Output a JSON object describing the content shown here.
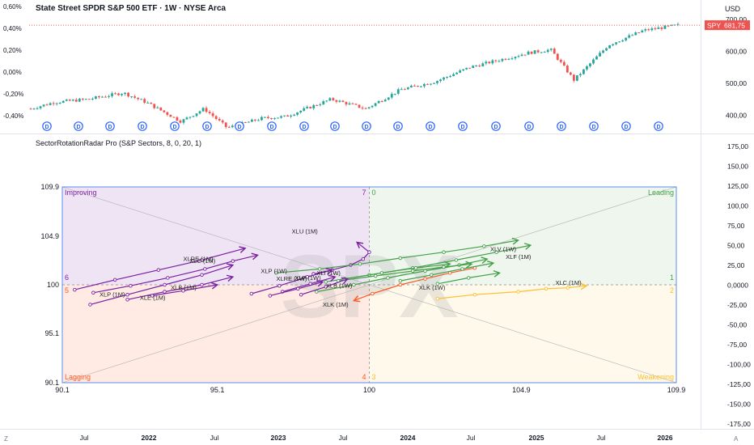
{
  "header": {
    "symbol_title": "State Street SPDR S&P 500 ETF · 1W · NYSE Arca",
    "currency": "USD",
    "price_tag_symbol": "SPY",
    "price_tag_value": "681,75"
  },
  "indicator": {
    "title": "SectorRotationRadar Pro (S&P Sectors, 8, 0, 20, 1)",
    "watermark": "SPX"
  },
  "colors": {
    "up": "#26a69a",
    "down": "#ef5350",
    "improving": "#7b1fa2",
    "leading": "#43a047",
    "lagging": "#ff5722",
    "weakening": "#fbc02d",
    "dividend": "#2962ff",
    "axis_text": "#131722"
  },
  "chart_data": [
    {
      "type": "candlestick",
      "title": "State Street SPDR S&P 500 ETF · 1W · NYSE Arca",
      "right_axis_ticks": [
        "700,00",
        "600,00",
        "500,00",
        "400,00"
      ],
      "left_axis_ticks": [
        "0,60%",
        "0,40%",
        "0,20%",
        "0,00%",
        "-0,20%",
        "-0,40%"
      ],
      "ylim": [
        355,
        710
      ],
      "last_price": 681.75,
      "close_approx": [
        {
          "date": "2021-05",
          "close": 420
        },
        {
          "date": "2021-07",
          "close": 440
        },
        {
          "date": "2021-10",
          "close": 450
        },
        {
          "date": "2022-01",
          "close": 470
        },
        {
          "date": "2022-03",
          "close": 440
        },
        {
          "date": "2022-06",
          "close": 380
        },
        {
          "date": "2022-08",
          "close": 420
        },
        {
          "date": "2022-10",
          "close": 360
        },
        {
          "date": "2023-01",
          "close": 390
        },
        {
          "date": "2023-03",
          "close": 395
        },
        {
          "date": "2023-07",
          "close": 450
        },
        {
          "date": "2023-10",
          "close": 420
        },
        {
          "date": "2024-01",
          "close": 480
        },
        {
          "date": "2024-04",
          "close": 505
        },
        {
          "date": "2024-07",
          "close": 550
        },
        {
          "date": "2024-12",
          "close": 595
        },
        {
          "date": "2025-02",
          "close": 605
        },
        {
          "date": "2025-04",
          "close": 510
        },
        {
          "date": "2025-07",
          "close": 620
        },
        {
          "date": "2025-10",
          "close": 665
        },
        {
          "date": "2026-01",
          "close": 682
        }
      ],
      "dividend_markers": [
        "D",
        "D",
        "D",
        "D",
        "D",
        "D",
        "D",
        "D",
        "D",
        "D",
        "D",
        "D",
        "D",
        "D",
        "D",
        "D",
        "D",
        "D",
        "D",
        "D"
      ]
    },
    {
      "type": "scatter",
      "title": "SectorRotationRadar Pro (S&P Sectors, 8, 0, 20, 1)",
      "xlim": [
        90.1,
        109.9
      ],
      "ylim": [
        90.1,
        109.9
      ],
      "x_ticks": [
        "90.1",
        "95.1",
        "100",
        "104.9",
        "109.9"
      ],
      "y_ticks": [
        "109.9",
        "104.9",
        "100",
        "95.1",
        "90.1"
      ],
      "quadrants": [
        {
          "name": "Improving",
          "number": "7",
          "color": "#7b1fa2"
        },
        {
          "name": "Leading",
          "number": "0",
          "color": "#43a047"
        },
        {
          "name": "Lagging",
          "number": "4",
          "color": "#ff5722"
        },
        {
          "name": "Weakening",
          "number": "3",
          "color": "#fbc02d"
        }
      ],
      "edge_numbers": {
        "left_top": "6",
        "left_mid": "5",
        "right_top": "1",
        "right_mid": "2"
      },
      "right_axis_ticks": [
        "175,00",
        "150,00",
        "125,00",
        "100,00",
        "75,00",
        "50,00",
        "25,00",
        "0,0000",
        "-25,00",
        "-50,00",
        "-75,00",
        "-100,00",
        "-125,00",
        "-150,00",
        "-175,00"
      ],
      "series": [
        {
          "name": "XLU (1M)",
          "color": "#7b1fa2",
          "points": [
            [
              98.2,
              101.1
            ],
            [
              98.8,
              101.5
            ],
            [
              99.4,
              102.0
            ],
            [
              99.8,
              102.6
            ],
            [
              100.0,
              103.3
            ],
            [
              99.6,
              104.3
            ]
          ]
        },
        {
          "name": "XLP (1M)",
          "color": "#7b1fa2",
          "points": [
            [
              91.1,
              99.2
            ],
            [
              92.3,
              99.9
            ],
            [
              93.5,
              100.7
            ],
            [
              94.7,
              101.6
            ],
            [
              95.6,
              102.4
            ],
            [
              96.4,
              103.0
            ]
          ]
        },
        {
          "name": "XLRE (1M)",
          "color": "#7b1fa2",
          "points": [
            [
              91.0,
              98.0
            ],
            [
              92.2,
              99.0
            ],
            [
              93.4,
              100.0
            ],
            [
              94.6,
              101.0
            ],
            [
              95.6,
              102.0
            ]
          ]
        },
        {
          "name": "XLF (1M)",
          "color": "#7b1fa2",
          "points": [
            [
              92.2,
              98.5
            ],
            [
              93.4,
              99.3
            ],
            [
              94.6,
              100.0
            ],
            [
              95.6,
              100.8
            ]
          ]
        },
        {
          "name": "XLE (1M)",
          "color": "#7b1fa2",
          "points": [
            [
              93.0,
              98.9
            ],
            [
              94.0,
              99.4
            ],
            [
              95.1,
              100.0
            ]
          ]
        },
        {
          "name": "XLB (1M)",
          "color": "#7b1fa2",
          "points": [
            [
              90.5,
              99.5
            ],
            [
              91.8,
              100.5
            ],
            [
              93.2,
              101.5
            ],
            [
              94.6,
              102.5
            ],
            [
              96.0,
              103.7
            ]
          ]
        },
        {
          "name": "XLP (1W)",
          "color": "#43a047",
          "points": [
            [
              97.0,
              101.2
            ],
            [
              98.4,
              101.6
            ],
            [
              99.7,
              102.1
            ],
            [
              101.0,
              102.7
            ],
            [
              102.4,
              103.3
            ],
            [
              103.7,
              103.9
            ],
            [
              104.8,
              104.5
            ]
          ]
        },
        {
          "name": "XLV (1W)",
          "color": "#43a047",
          "points": [
            [
              98.6,
              100.3
            ],
            [
              100.0,
              101.0
            ],
            [
              101.4,
              101.7
            ],
            [
              102.8,
              102.5
            ],
            [
              104.1,
              103.3
            ],
            [
              105.2,
              104.0
            ]
          ]
        },
        {
          "name": "XLF (1W)",
          "color": "#43a047",
          "points": [
            [
              98.3,
              99.3
            ],
            [
              99.5,
              100.0
            ],
            [
              100.6,
              100.7
            ],
            [
              101.8,
              101.4
            ],
            [
              102.9,
              102.0
            ],
            [
              103.8,
              102.6
            ]
          ]
        },
        {
          "name": "XLI (1W)",
          "color": "#43a047",
          "points": [
            [
              99.0,
              100.4
            ],
            [
              100.2,
              100.9
            ],
            [
              101.4,
              101.4
            ],
            [
              102.4,
              101.8
            ],
            [
              103.3,
              102.1
            ]
          ]
        },
        {
          "name": "XLY (1W)",
          "color": "#43a047",
          "points": [
            [
              99.2,
              100.6
            ],
            [
              100.4,
              101.2
            ],
            [
              101.5,
              101.7
            ],
            [
              102.6,
              102.1
            ]
          ]
        },
        {
          "name": "XLRE (1W)",
          "color": "#7b1fa2",
          "points": [
            [
              96.2,
              99.1
            ],
            [
              97.1,
              99.9
            ],
            [
              98.0,
              100.8
            ],
            [
              98.8,
              101.5
            ]
          ]
        },
        {
          "name": "XLB (1W)",
          "color": "#7b1fa2",
          "points": [
            [
              97.8,
              99.0
            ],
            [
              98.6,
              99.8
            ],
            [
              99.3,
              100.6
            ]
          ]
        },
        {
          "name": "XLC (1W)",
          "color": "#7b1fa2",
          "points": [
            [
              97.2,
              99.3
            ],
            [
              98.1,
              100.1
            ],
            [
              98.9,
              100.8
            ]
          ]
        },
        {
          "name": "XLE (1W)",
          "color": "#7b1fa2",
          "points": [
            [
              96.8,
              98.9
            ],
            [
              97.7,
              99.6
            ],
            [
              98.5,
              100.3
            ]
          ]
        },
        {
          "name": "XLK (1W)",
          "color": "#ff5722",
          "points": [
            [
              103.4,
              101.7
            ],
            [
              102.6,
              101.2
            ],
            [
              101.8,
              100.6
            ],
            [
              101.0,
              100.0
            ],
            [
              100.1,
              99.1
            ],
            [
              99.5,
              98.4
            ]
          ]
        },
        {
          "name": "XLK (1M)",
          "color": "#fbc02d",
          "points": [
            [
              102.2,
              98.6
            ],
            [
              103.4,
              99.0
            ],
            [
              104.8,
              99.3
            ],
            [
              105.7,
              99.6
            ],
            [
              106.4,
              99.7
            ],
            [
              107.0,
              99.9
            ]
          ]
        },
        {
          "name": "XLY (1M)",
          "color": "#43a047",
          "points": [
            [
              101.0,
              100.4
            ],
            [
              102.0,
              101.0
            ],
            [
              103.0,
              101.6
            ],
            [
              104.0,
              102.2
            ]
          ]
        },
        {
          "name": "XLC (1M)",
          "color": "#43a047",
          "points": [
            [
              102.2,
              100.1
            ],
            [
              103.2,
              100.7
            ],
            [
              104.2,
              101.2
            ]
          ]
        }
      ],
      "labels": [
        {
          "text": "XLU (1M)",
          "x": 97.5,
          "y": 105.2
        },
        {
          "text": "XLRE (1M)",
          "x": 94.0,
          "y": 102.4
        },
        {
          "text": "XLC (1M)",
          "x": 94.2,
          "y": 102.2
        },
        {
          "text": "XLP (1W)",
          "x": 96.5,
          "y": 101.2
        },
        {
          "text": "XLRE (1W)",
          "x": 97.0,
          "y": 100.4
        },
        {
          "text": "XLF (1W)",
          "x": 97.6,
          "y": 100.5
        },
        {
          "text": "XLI (1W)",
          "x": 98.3,
          "y": 101.0
        },
        {
          "text": "XLV (1W)",
          "x": 103.9,
          "y": 103.4
        },
        {
          "text": "XLF (1M)",
          "x": 104.4,
          "y": 102.6
        },
        {
          "text": "XLC (1M)",
          "x": 106.0,
          "y": 100.0
        },
        {
          "text": "XLB (1M)",
          "x": 93.6,
          "y": 99.5
        },
        {
          "text": "XLP (1M)",
          "x": 91.3,
          "y": 98.8
        },
        {
          "text": "XLE (1M)",
          "x": 92.6,
          "y": 98.5
        },
        {
          "text": "XLK (1W)",
          "x": 101.6,
          "y": 99.5
        },
        {
          "text": "XLK (1M)",
          "x": 98.5,
          "y": 97.8
        },
        {
          "text": "XLB (1W)",
          "x": 98.6,
          "y": 99.7
        }
      ]
    }
  ],
  "time_axis": {
    "labels": [
      "Jul",
      "2022",
      "Jul",
      "2023",
      "Jul",
      "2024",
      "Jul",
      "2025",
      "Jul",
      "2026"
    ],
    "bold": [
      false,
      true,
      false,
      true,
      false,
      true,
      false,
      true,
      false,
      true
    ]
  },
  "corner": {
    "left": "Z",
    "right": "A"
  }
}
